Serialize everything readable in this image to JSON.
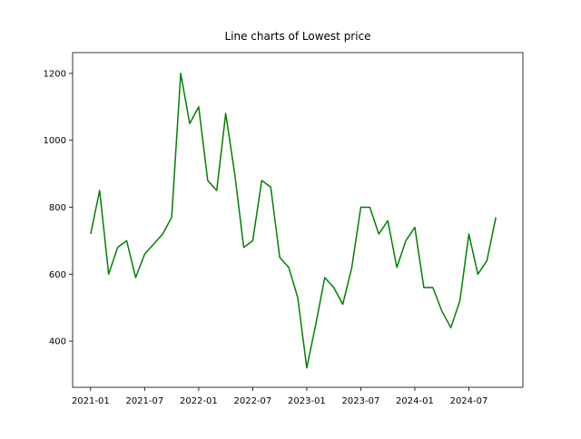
{
  "chart_data": {
    "type": "line",
    "title": "Line charts of Lowest price",
    "x": [
      "2021-01",
      "2021-02",
      "2021-03",
      "2021-04",
      "2021-05",
      "2021-06",
      "2021-07",
      "2021-08",
      "2021-09",
      "2021-10",
      "2021-11",
      "2021-12",
      "2022-01",
      "2022-02",
      "2022-03",
      "2022-04",
      "2022-05",
      "2022-06",
      "2022-07",
      "2022-08",
      "2022-09",
      "2022-10",
      "2022-11",
      "2022-12",
      "2023-01",
      "2023-02",
      "2023-03",
      "2023-04",
      "2023-05",
      "2023-06",
      "2023-07",
      "2023-08",
      "2023-09",
      "2023-10",
      "2023-11",
      "2023-12",
      "2024-01",
      "2024-02",
      "2024-03",
      "2024-04",
      "2024-05",
      "2024-06",
      "2024-07",
      "2024-08",
      "2024-09",
      "2024-10"
    ],
    "series": [
      {
        "name": "Lowest price",
        "color": "#008000",
        "values": [
          720,
          850,
          600,
          680,
          700,
          590,
          660,
          690,
          720,
          770,
          1200,
          1050,
          1100,
          880,
          850,
          1080,
          900,
          680,
          700,
          880,
          860,
          650,
          620,
          530,
          320,
          450,
          590,
          560,
          510,
          620,
          800,
          800,
          720,
          760,
          620,
          700,
          740,
          560,
          560,
          490,
          440,
          520,
          720,
          600,
          640,
          770
        ]
      }
    ],
    "xlim": [
      "2020-11",
      "2025-01"
    ],
    "xticks": [
      "2021-01",
      "2021-07",
      "2022-01",
      "2022-07",
      "2023-01",
      "2023-07",
      "2024-01",
      "2024-07"
    ],
    "ylim": [
      262,
      1262
    ],
    "yticks": [
      400,
      600,
      800,
      1000,
      1200
    ],
    "grid": false
  }
}
